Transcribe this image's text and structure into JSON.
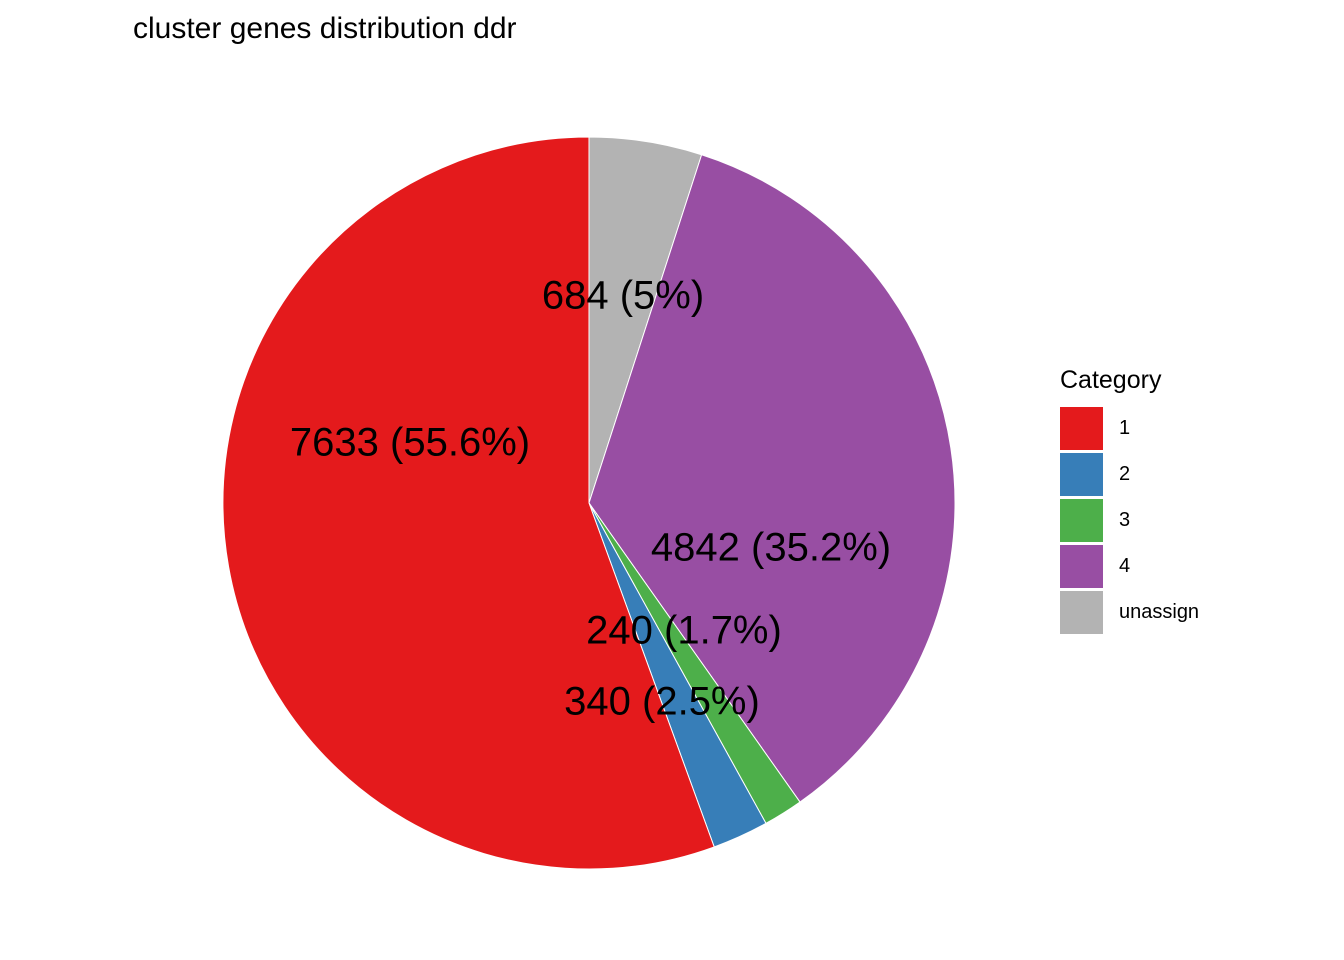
{
  "chart_data": {
    "type": "pie",
    "title": "cluster genes distribution ddr",
    "legend_title": "Category",
    "legend_position": "right",
    "categories": [
      "1",
      "2",
      "3",
      "4",
      "unassign"
    ],
    "values": [
      7633,
      340,
      240,
      4842,
      684
    ],
    "percent_labels": [
      "55.6%",
      "2.5%",
      "1.7%",
      "35.2%",
      "5%"
    ],
    "labels": [
      "7633 (55.6%)",
      "340 (2.5%)",
      "240 (1.7%)",
      "4842 (35.2%)",
      "684 (5%)"
    ],
    "colors": [
      "#E41A1C",
      "#377EB8",
      "#4DAF4A",
      "#984EA3",
      "#B3B3B3"
    ]
  }
}
